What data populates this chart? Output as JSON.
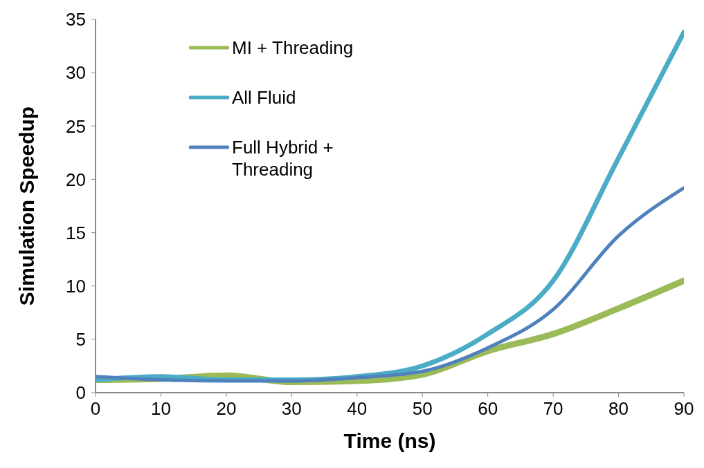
{
  "chart_data": {
    "type": "line",
    "xlabel": "Time (ns)",
    "ylabel": "Simulation Speedup",
    "x": [
      0,
      10,
      20,
      30,
      40,
      50,
      60,
      70,
      80,
      90
    ],
    "series": [
      {
        "name": "MI + Threading",
        "color": "#9bbb59",
        "values": [
          1.2,
          1.3,
          1.6,
          1.0,
          1.1,
          1.7,
          3.9,
          5.5,
          7.9,
          10.5
        ]
      },
      {
        "name": "All Fluid",
        "color": "#4bacc6",
        "values": [
          1.2,
          1.5,
          1.2,
          1.2,
          1.5,
          2.5,
          5.5,
          10.5,
          22,
          33.8
        ]
      },
      {
        "name": "Full Hybrid + Threading",
        "color": "#4f81bd",
        "values": [
          1.5,
          1.2,
          1.1,
          1.1,
          1.4,
          2.0,
          4.2,
          7.8,
          14.7,
          19.2
        ]
      }
    ],
    "xlim": [
      0,
      90
    ],
    "xticks": [
      0,
      10,
      20,
      30,
      40,
      50,
      60,
      70,
      80,
      90
    ],
    "ylim": [
      0,
      35
    ],
    "yticks": [
      0,
      5,
      10,
      15,
      20,
      25,
      30,
      35
    ],
    "grid": false,
    "legend": "top left",
    "marker": "none",
    "line_style": "solid"
  }
}
